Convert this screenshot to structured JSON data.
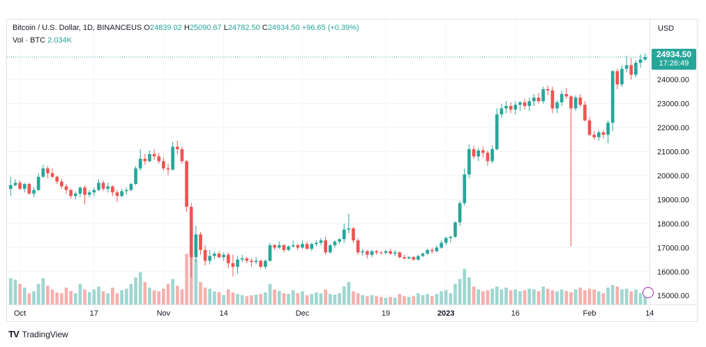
{
  "legend": {
    "symbol": "Bitcoin / U.S. Dollar, 1D, BINANCEUS",
    "open_label": "O",
    "open": "24839.02",
    "high_label": "H",
    "high": "25090.67",
    "low_label": "L",
    "low": "24782.50",
    "close_label": "C",
    "close": "24934.50",
    "change": "+96.65 (+0.39%)",
    "vol_label": "Vol · BTC",
    "vol": "2.034K"
  },
  "price_axis": {
    "currency": "USD",
    "last_price": "24934.50",
    "countdown": "17:26:49"
  },
  "brand": {
    "name": "TradingView",
    "logo": "TV"
  },
  "colors": {
    "up": "#26a69a",
    "down": "#ef5350",
    "vol_up": "#9fd6d0",
    "vol_down": "#f5b0ae",
    "grid": "#f0f3fa"
  },
  "chart_data": {
    "type": "candlestick",
    "title": "Bitcoin / U.S. Dollar, 1D, BINANCEUS",
    "ylabel": "USD",
    "ylim": [
      14600,
      25400
    ],
    "y_ticks": [
      15000,
      16000,
      17000,
      18000,
      19000,
      20000,
      21000,
      22000,
      23000,
      24000
    ],
    "y_tick_labels": [
      "15000.00",
      "16000.00",
      "17000.00",
      "18000.00",
      "19000.00",
      "20000.00",
      "21000.00",
      "22000.00",
      "23000.00",
      "24000.00"
    ],
    "x_ticks": [
      {
        "label": "Oct",
        "index": 2,
        "bold": false
      },
      {
        "label": "17",
        "index": 18,
        "bold": false
      },
      {
        "label": "Nov",
        "index": 33,
        "bold": false
      },
      {
        "label": "14",
        "index": 46,
        "bold": false
      },
      {
        "label": "Dec",
        "index": 63,
        "bold": false
      },
      {
        "label": "19",
        "index": 81,
        "bold": false
      },
      {
        "label": "2023",
        "index": 94,
        "bold": true
      },
      {
        "label": "16",
        "index": 109,
        "bold": false
      },
      {
        "label": "Feb",
        "index": 125,
        "bold": false
      },
      {
        "label": "14",
        "index": 138,
        "bold": false
      }
    ],
    "last_price": 24934.5,
    "ohlc": [
      [
        19450,
        19950,
        19150,
        19600,
        70
      ],
      [
        19600,
        19850,
        19550,
        19700,
        66
      ],
      [
        19700,
        19800,
        19400,
        19450,
        55
      ],
      [
        19450,
        19700,
        19300,
        19650,
        45
      ],
      [
        19650,
        19700,
        19200,
        19250,
        30
      ],
      [
        19250,
        19500,
        19100,
        19400,
        35
      ],
      [
        19400,
        20100,
        19350,
        19950,
        55
      ],
      [
        19950,
        20450,
        19900,
        20300,
        70
      ],
      [
        20300,
        20400,
        19900,
        20100,
        50
      ],
      [
        20100,
        20300,
        19900,
        19950,
        40
      ],
      [
        19950,
        20000,
        19650,
        19750,
        32
      ],
      [
        19750,
        19850,
        19450,
        19550,
        30
      ],
      [
        19550,
        19650,
        19250,
        19400,
        45
      ],
      [
        19400,
        19450,
        19050,
        19150,
        36
      ],
      [
        19150,
        19350,
        19000,
        19250,
        30
      ],
      [
        19250,
        19550,
        19100,
        19500,
        55
      ],
      [
        19500,
        19600,
        18800,
        19200,
        40
      ],
      [
        19200,
        19400,
        19100,
        19300,
        33
      ],
      [
        19300,
        19500,
        19150,
        19400,
        40
      ],
      [
        19400,
        19850,
        19350,
        19700,
        48
      ],
      [
        19700,
        19800,
        19350,
        19450,
        35
      ],
      [
        19450,
        19700,
        19300,
        19550,
        30
      ],
      [
        19550,
        19600,
        19150,
        19300,
        45
      ],
      [
        19300,
        19400,
        18900,
        19150,
        30
      ],
      [
        19150,
        19450,
        19100,
        19350,
        38
      ],
      [
        19350,
        19500,
        19200,
        19400,
        42
      ],
      [
        19400,
        19700,
        19350,
        19650,
        55
      ],
      [
        19650,
        20400,
        19600,
        20300,
        72
      ],
      [
        20300,
        21100,
        20200,
        20700,
        86
      ],
      [
        20700,
        20900,
        20450,
        20600,
        60
      ],
      [
        20600,
        21050,
        20550,
        20900,
        45
      ],
      [
        20900,
        21100,
        20650,
        20800,
        38
      ],
      [
        20800,
        20950,
        20500,
        20600,
        35
      ],
      [
        20600,
        20750,
        20200,
        20300,
        42
      ],
      [
        20300,
        20500,
        20000,
        20250,
        55
      ],
      [
        20250,
        21400,
        20200,
        21200,
        68
      ],
      [
        21200,
        21450,
        20900,
        21100,
        50
      ],
      [
        21100,
        21200,
        20500,
        20600,
        40
      ],
      [
        20600,
        20650,
        18500,
        18700,
        135
      ],
      [
        18700,
        18850,
        15750,
        16600,
        180
      ],
      [
        16600,
        17900,
        16400,
        17550,
        120
      ],
      [
        17550,
        17650,
        16700,
        16900,
        60
      ],
      [
        16900,
        17100,
        16250,
        16450,
        45
      ],
      [
        16450,
        16900,
        16300,
        16650,
        42
      ],
      [
        16650,
        16850,
        16500,
        16750,
        35
      ],
      [
        16750,
        16850,
        16550,
        16600,
        33
      ],
      [
        16600,
        16800,
        16450,
        16700,
        25
      ],
      [
        16700,
        16800,
        16150,
        16350,
        40
      ],
      [
        16350,
        16700,
        15800,
        16200,
        32
      ],
      [
        16200,
        16650,
        15900,
        16500,
        28
      ],
      [
        16500,
        16700,
        16400,
        16550,
        25
      ],
      [
        16550,
        16600,
        16350,
        16450,
        22
      ],
      [
        16450,
        16550,
        16200,
        16400,
        24
      ],
      [
        16400,
        16600,
        16300,
        16450,
        26
      ],
      [
        16450,
        16500,
        16150,
        16200,
        28
      ],
      [
        16200,
        16500,
        16100,
        16450,
        32
      ],
      [
        16450,
        17200,
        16400,
        17100,
        55
      ],
      [
        17100,
        17150,
        16900,
        17000,
        40
      ],
      [
        17000,
        17250,
        16950,
        17100,
        36
      ],
      [
        17100,
        17150,
        16800,
        16900,
        30
      ],
      [
        16900,
        17100,
        16850,
        17050,
        28
      ],
      [
        17050,
        17300,
        17000,
        17100,
        38
      ],
      [
        17100,
        17150,
        16900,
        17000,
        30
      ],
      [
        17000,
        17300,
        16950,
        17150,
        35
      ],
      [
        17150,
        17250,
        16900,
        16950,
        25
      ],
      [
        16950,
        17200,
        16850,
        17150,
        28
      ],
      [
        17150,
        17300,
        17050,
        17200,
        32
      ],
      [
        17200,
        17400,
        17100,
        17300,
        30
      ],
      [
        17300,
        17450,
        16700,
        16800,
        40
      ],
      [
        16800,
        17150,
        16750,
        17100,
        28
      ],
      [
        17100,
        17300,
        17000,
        17250,
        26
      ],
      [
        17250,
        17400,
        17150,
        17350,
        30
      ],
      [
        17350,
        18000,
        17200,
        17750,
        48
      ],
      [
        17750,
        18400,
        17600,
        17800,
        60
      ],
      [
        17800,
        17850,
        17200,
        17300,
        35
      ],
      [
        17300,
        17400,
        16700,
        16800,
        30
      ],
      [
        16800,
        16950,
        16650,
        16850,
        25
      ],
      [
        16850,
        16900,
        16550,
        16700,
        22
      ],
      [
        16700,
        16900,
        16600,
        16850,
        25
      ],
      [
        16850,
        16900,
        16700,
        16800,
        22
      ],
      [
        16800,
        16850,
        16700,
        16780,
        20
      ],
      [
        16780,
        16900,
        16700,
        16850,
        18
      ],
      [
        16850,
        16950,
        16700,
        16750,
        20
      ],
      [
        16750,
        16900,
        16650,
        16800,
        18
      ],
      [
        16800,
        16850,
        16550,
        16600,
        28
      ],
      [
        16600,
        16700,
        16500,
        16550,
        22
      ],
      [
        16550,
        16650,
        16500,
        16600,
        20
      ],
      [
        16600,
        16650,
        16450,
        16500,
        22
      ],
      [
        16500,
        16700,
        16450,
        16650,
        30
      ],
      [
        16650,
        16800,
        16600,
        16750,
        25
      ],
      [
        16750,
        16950,
        16700,
        16900,
        28
      ],
      [
        16900,
        17000,
        16750,
        16850,
        22
      ],
      [
        16850,
        17100,
        16800,
        17000,
        28
      ],
      [
        17000,
        17300,
        16950,
        17200,
        35
      ],
      [
        17200,
        17450,
        17100,
        17400,
        38
      ],
      [
        17400,
        17500,
        17200,
        17450,
        30
      ],
      [
        17450,
        18100,
        17400,
        18050,
        55
      ],
      [
        18050,
        18950,
        17900,
        18850,
        68
      ],
      [
        18850,
        20300,
        18750,
        20050,
        95
      ],
      [
        20050,
        21300,
        19900,
        21100,
        72
      ],
      [
        21100,
        21250,
        20700,
        20800,
        48
      ],
      [
        20800,
        21150,
        20600,
        21050,
        40
      ],
      [
        21050,
        21200,
        20750,
        20950,
        35
      ],
      [
        20950,
        21050,
        20400,
        20600,
        38
      ],
      [
        20600,
        21250,
        20500,
        21100,
        42
      ],
      [
        21100,
        22800,
        21050,
        22550,
        48
      ],
      [
        22550,
        23000,
        22400,
        22800,
        40
      ],
      [
        22800,
        23100,
        22600,
        22900,
        45
      ],
      [
        22900,
        23050,
        22600,
        22750,
        38
      ],
      [
        22750,
        23100,
        22550,
        22950,
        40
      ],
      [
        22950,
        23100,
        22700,
        23050,
        35
      ],
      [
        23050,
        23200,
        22750,
        22900,
        38
      ],
      [
        22900,
        23250,
        22700,
        23100,
        42
      ],
      [
        23100,
        23400,
        22900,
        23250,
        40
      ],
      [
        23250,
        23450,
        23000,
        23100,
        35
      ],
      [
        23100,
        23700,
        23000,
        23600,
        48
      ],
      [
        23600,
        23750,
        23350,
        23550,
        42
      ],
      [
        23550,
        23700,
        22600,
        22800,
        38
      ],
      [
        22800,
        23150,
        22600,
        23050,
        35
      ],
      [
        23050,
        23550,
        22900,
        23400,
        40
      ],
      [
        23400,
        23650,
        23200,
        23300,
        36
      ],
      [
        23300,
        23350,
        17050,
        22800,
        33
      ],
      [
        22800,
        23350,
        22700,
        23250,
        40
      ],
      [
        23250,
        23400,
        22850,
        22950,
        45
      ],
      [
        22950,
        23100,
        22250,
        22300,
        38
      ],
      [
        22300,
        22450,
        21650,
        21700,
        42
      ],
      [
        21700,
        21850,
        21500,
        21600,
        40
      ],
      [
        21600,
        21900,
        21450,
        21800,
        35
      ],
      [
        21800,
        21900,
        21550,
        21700,
        30
      ],
      [
        21700,
        22300,
        21350,
        22200,
        45
      ],
      [
        22200,
        24400,
        21850,
        24350,
        52
      ],
      [
        24350,
        24450,
        23600,
        23800,
        48
      ],
      [
        23800,
        24600,
        23700,
        24450,
        40
      ],
      [
        24450,
        25000,
        24300,
        24600,
        42
      ],
      [
        24600,
        24900,
        24000,
        24200,
        35
      ],
      [
        24200,
        24800,
        24100,
        24700,
        40
      ],
      [
        24700,
        25050,
        24500,
        24840,
        30
      ],
      [
        24839,
        25091,
        24783,
        24934.5,
        22
      ]
    ]
  }
}
